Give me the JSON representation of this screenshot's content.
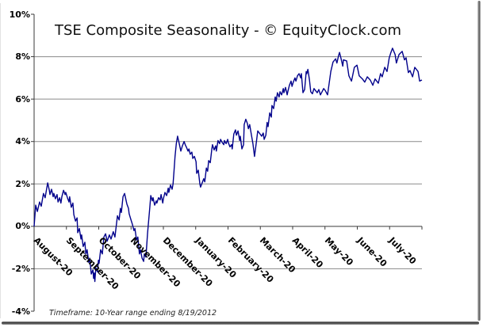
{
  "page": {
    "background": "#ffffff"
  },
  "chart_data": {
    "type": "line",
    "title": "TSE Composite Seasonality - © EquityClock.com",
    "footnote": "Timeframe: 10-Year range ending 8/19/2012",
    "legend": false,
    "grid": true,
    "colors": {
      "line": "#00008B",
      "gridline": "#8a8a8a",
      "axis": "#3a3a3a",
      "text": "#000000"
    },
    "x_axis": {
      "categories": [
        "August-20",
        "September-20",
        "October-20",
        "November-20",
        "December-20",
        "January-20",
        "February-20",
        "March-20",
        "April-20",
        "May-20",
        "June-20",
        "July-20"
      ],
      "label_rotation_deg": 45,
      "axis_crosses_at": 0
    },
    "y_axis": {
      "unit": "%",
      "min": -4,
      "max": 10,
      "step": 2,
      "ticks": [
        {
          "value": 10,
          "label": "10%"
        },
        {
          "value": 8,
          "label": "8%"
        },
        {
          "value": 6,
          "label": "6%"
        },
        {
          "value": 4,
          "label": "4%"
        },
        {
          "value": 2,
          "label": "2%"
        },
        {
          "value": 0,
          "label": "0%"
        },
        {
          "value": -2,
          "label": "-2%"
        },
        {
          "value": -4,
          "label": "-4%"
        }
      ]
    },
    "series": [
      {
        "name": "TSE Composite Seasonality",
        "color": "#00008B",
        "x_unit": "month-index (0 = start of August, 12 = end of July)",
        "y_unit": "percent",
        "points": [
          [
            0,
            0
          ],
          [
            0.05,
            1
          ],
          [
            0.1,
            0.7
          ],
          [
            0.17,
            1.15
          ],
          [
            0.22,
            0.95
          ],
          [
            0.29,
            1.55
          ],
          [
            0.34,
            1.35
          ],
          [
            0.42,
            2.05
          ],
          [
            0.47,
            1.7
          ],
          [
            0.49,
            1.5
          ],
          [
            0.54,
            1.75
          ],
          [
            0.59,
            1.4
          ],
          [
            0.61,
            1.55
          ],
          [
            0.66,
            1.3
          ],
          [
            0.71,
            1.5
          ],
          [
            0.74,
            1.15
          ],
          [
            0.79,
            1.35
          ],
          [
            0.83,
            1.1
          ],
          [
            0.86,
            1.4
          ],
          [
            0.91,
            1.7
          ],
          [
            0.96,
            1.5
          ],
          [
            0.98,
            1.6
          ],
          [
            1.03,
            1.35
          ],
          [
            1.08,
            1.15
          ],
          [
            1.1,
            1.4
          ],
          [
            1.15,
            0.9
          ],
          [
            1.2,
            1.1
          ],
          [
            1.23,
            0.55
          ],
          [
            1.28,
            0.25
          ],
          [
            1.33,
            0.4
          ],
          [
            1.35,
            -0.3
          ],
          [
            1.4,
            -0.1
          ],
          [
            1.45,
            -0.6
          ],
          [
            1.47,
            -0.4
          ],
          [
            1.52,
            -0.95
          ],
          [
            1.57,
            -0.75
          ],
          [
            1.6,
            -1.3
          ],
          [
            1.64,
            -1.1
          ],
          [
            1.69,
            -1.7
          ],
          [
            1.72,
            -1.5
          ],
          [
            1.77,
            -2.25
          ],
          [
            1.82,
            -2.05
          ],
          [
            1.84,
            -2.45
          ],
          [
            1.86,
            -2.2
          ],
          [
            1.88,
            -2.6
          ],
          [
            1.91,
            -1.95
          ],
          [
            1.96,
            -2.15
          ],
          [
            1.99,
            -1.6
          ],
          [
            2.01,
            -1.75
          ],
          [
            2.06,
            -1.1
          ],
          [
            2.11,
            -1.3
          ],
          [
            2.16,
            -0.5
          ],
          [
            2.21,
            -0.35
          ],
          [
            2.26,
            -0.7
          ],
          [
            2.33,
            -0.4
          ],
          [
            2.38,
            -0.6
          ],
          [
            2.45,
            -0.25
          ],
          [
            2.5,
            -0.5
          ],
          [
            2.58,
            0.5
          ],
          [
            2.63,
            0.3
          ],
          [
            2.67,
            0.85
          ],
          [
            2.7,
            0.65
          ],
          [
            2.75,
            1.4
          ],
          [
            2.8,
            1.55
          ],
          [
            2.85,
            1.2
          ],
          [
            2.87,
            1.05
          ],
          [
            2.92,
            0.85
          ],
          [
            2.94,
            0.6
          ],
          [
            2.99,
            0.35
          ],
          [
            3.04,
            0.1
          ],
          [
            3.09,
            -0.2
          ],
          [
            3.12,
            -0.1
          ],
          [
            3.17,
            -0.65
          ],
          [
            3.21,
            -0.5
          ],
          [
            3.26,
            -1.3
          ],
          [
            3.29,
            -1.1
          ],
          [
            3.34,
            -1.5
          ],
          [
            3.39,
            -1.65
          ],
          [
            3.41,
            -1.3
          ],
          [
            3.46,
            -1.45
          ],
          [
            3.51,
            -0.35
          ],
          [
            3.53,
            0
          ],
          [
            3.58,
            0.9
          ],
          [
            3.61,
            1.45
          ],
          [
            3.66,
            1.2
          ],
          [
            3.68,
            1.35
          ],
          [
            3.73,
            1
          ],
          [
            3.78,
            1.2
          ],
          [
            3.8,
            1.1
          ],
          [
            3.85,
            1.35
          ],
          [
            3.9,
            1.25
          ],
          [
            3.93,
            1.5
          ],
          [
            3.98,
            1.1
          ],
          [
            4,
            1.3
          ],
          [
            4.05,
            1.6
          ],
          [
            4.1,
            1.45
          ],
          [
            4.15,
            1.8
          ],
          [
            4.17,
            1.6
          ],
          [
            4.22,
            1.95
          ],
          [
            4.27,
            1.75
          ],
          [
            4.3,
            2
          ],
          [
            4.33,
            2.6
          ],
          [
            4.36,
            3.3
          ],
          [
            4.4,
            3.9
          ],
          [
            4.44,
            4.25
          ],
          [
            4.49,
            3.9
          ],
          [
            4.54,
            3.55
          ],
          [
            4.59,
            3.8
          ],
          [
            4.64,
            4
          ],
          [
            4.69,
            3.8
          ],
          [
            4.71,
            3.75
          ],
          [
            4.76,
            3.55
          ],
          [
            4.79,
            3.65
          ],
          [
            4.83,
            3.4
          ],
          [
            4.88,
            3.5
          ],
          [
            4.91,
            3.2
          ],
          [
            4.96,
            3.3
          ],
          [
            5.01,
            3.05
          ],
          [
            5.03,
            2.5
          ],
          [
            5.08,
            2.65
          ],
          [
            5.13,
            2
          ],
          [
            5.15,
            1.85
          ],
          [
            5.25,
            2.25
          ],
          [
            5.28,
            2.1
          ],
          [
            5.33,
            2.75
          ],
          [
            5.37,
            2.6
          ],
          [
            5.4,
            3.1
          ],
          [
            5.45,
            3
          ],
          [
            5.5,
            3.65
          ],
          [
            5.52,
            3.85
          ],
          [
            5.57,
            3.6
          ],
          [
            5.62,
            3.8
          ],
          [
            5.64,
            3.55
          ],
          [
            5.69,
            4.05
          ],
          [
            5.74,
            3.9
          ],
          [
            5.77,
            4.1
          ],
          [
            5.82,
            3.95
          ],
          [
            5.87,
            3.85
          ],
          [
            5.89,
            4.05
          ],
          [
            5.94,
            3.9
          ],
          [
            5.99,
            4.1
          ],
          [
            6.01,
            3.95
          ],
          [
            6.06,
            3.75
          ],
          [
            6.11,
            3.85
          ],
          [
            6.13,
            3.65
          ],
          [
            6.18,
            4.35
          ],
          [
            6.23,
            4.55
          ],
          [
            6.26,
            4.3
          ],
          [
            6.31,
            4.5
          ],
          [
            6.36,
            4.05
          ],
          [
            6.38,
            4.25
          ],
          [
            6.43,
            3.65
          ],
          [
            6.48,
            3.85
          ],
          [
            6.5,
            4.8
          ],
          [
            6.55,
            5.05
          ],
          [
            6.6,
            4.85
          ],
          [
            6.63,
            4.6
          ],
          [
            6.67,
            4.8
          ],
          [
            6.72,
            4.35
          ],
          [
            6.77,
            3.9
          ],
          [
            6.82,
            3.3
          ],
          [
            6.87,
            3.9
          ],
          [
            6.92,
            4.5
          ],
          [
            6.97,
            4.4
          ],
          [
            7.04,
            4.25
          ],
          [
            7.09,
            4.4
          ],
          [
            7.12,
            4.1
          ],
          [
            7.17,
            4.3
          ],
          [
            7.21,
            4.9
          ],
          [
            7.24,
            4.7
          ],
          [
            7.29,
            5.35
          ],
          [
            7.34,
            5.15
          ],
          [
            7.36,
            5.7
          ],
          [
            7.41,
            5.55
          ],
          [
            7.46,
            6.1
          ],
          [
            7.49,
            5.9
          ],
          [
            7.53,
            6.3
          ],
          [
            7.58,
            6.1
          ],
          [
            7.61,
            6.35
          ],
          [
            7.66,
            6.2
          ],
          [
            7.71,
            6.5
          ],
          [
            7.73,
            6.3
          ],
          [
            7.78,
            6.55
          ],
          [
            7.83,
            6.2
          ],
          [
            7.85,
            6.35
          ],
          [
            7.9,
            6.65
          ],
          [
            7.95,
            6.85
          ],
          [
            7.98,
            6.6
          ],
          [
            8.02,
            6.8
          ],
          [
            8.07,
            7
          ],
          [
            8.1,
            6.85
          ],
          [
            8.15,
            7.1
          ],
          [
            8.2,
            7.2
          ],
          [
            8.25,
            7
          ],
          [
            8.27,
            7.2
          ],
          [
            8.32,
            6.3
          ],
          [
            8.37,
            6.45
          ],
          [
            8.42,
            7.3
          ],
          [
            8.44,
            7.2
          ],
          [
            8.47,
            7.4
          ],
          [
            8.52,
            6.9
          ],
          [
            8.56,
            6.35
          ],
          [
            8.61,
            6.25
          ],
          [
            8.66,
            6.5
          ],
          [
            8.71,
            6.4
          ],
          [
            8.76,
            6.3
          ],
          [
            8.81,
            6.45
          ],
          [
            8.86,
            6.2
          ],
          [
            8.91,
            6.35
          ],
          [
            8.96,
            6.5
          ],
          [
            9.01,
            6.4
          ],
          [
            9.08,
            6.2
          ],
          [
            9.18,
            7.3
          ],
          [
            9.25,
            7.75
          ],
          [
            9.33,
            7.9
          ],
          [
            9.37,
            7.7
          ],
          [
            9.42,
            8.05
          ],
          [
            9.45,
            8.2
          ],
          [
            9.5,
            7.9
          ],
          [
            9.55,
            7.55
          ],
          [
            9.57,
            7.85
          ],
          [
            9.67,
            7.8
          ],
          [
            9.74,
            7.1
          ],
          [
            9.82,
            6.85
          ],
          [
            9.91,
            7.5
          ],
          [
            9.99,
            7.6
          ],
          [
            10.06,
            7.1
          ],
          [
            10.16,
            6.95
          ],
          [
            10.23,
            6.8
          ],
          [
            10.31,
            7.05
          ],
          [
            10.4,
            6.9
          ],
          [
            10.48,
            6.65
          ],
          [
            10.55,
            6.95
          ],
          [
            10.65,
            6.75
          ],
          [
            10.72,
            7.2
          ],
          [
            10.77,
            7.05
          ],
          [
            10.85,
            7.5
          ],
          [
            10.92,
            7.3
          ],
          [
            10.99,
            7.95
          ],
          [
            11.04,
            8.2
          ],
          [
            11.09,
            8.4
          ],
          [
            11.17,
            8.1
          ],
          [
            11.21,
            7.7
          ],
          [
            11.29,
            8.1
          ],
          [
            11.39,
            8.25
          ],
          [
            11.46,
            7.85
          ],
          [
            11.51,
            7.95
          ],
          [
            11.58,
            7.25
          ],
          [
            11.63,
            7.35
          ],
          [
            11.71,
            7.05
          ],
          [
            11.78,
            7.5
          ],
          [
            11.88,
            7.3
          ],
          [
            11.93,
            6.85
          ],
          [
            12,
            6.9
          ]
        ]
      }
    ]
  }
}
